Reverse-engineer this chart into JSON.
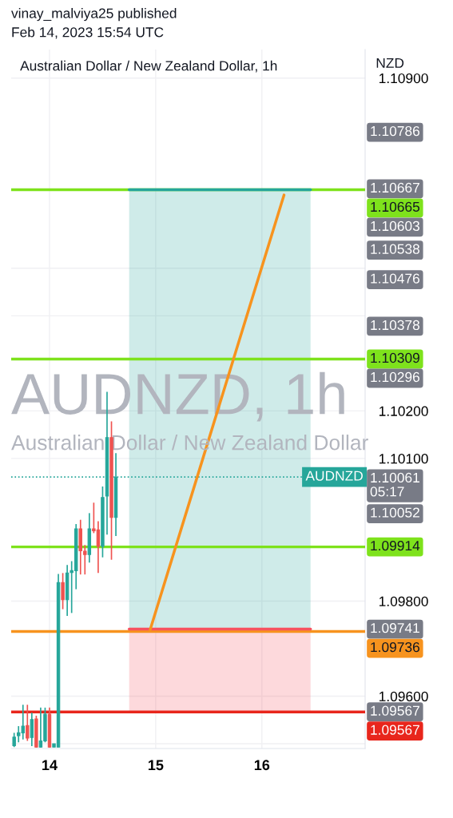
{
  "chart_data": {
    "type": "candlestick",
    "title": "Australian Dollar / New Zealand Dollar, 1h",
    "subtitle": "vinay_malviya25 published\nFeb 14, 2023 15:54 UTC",
    "ylabel": "NZD",
    "x": [
      "2023-02-13T16:00",
      "2023-02-13T17:00",
      "2023-02-13T18:00",
      "2023-02-13T19:00",
      "2023-02-13T20:00",
      "2023-02-13T21:00",
      "2023-02-13T22:00",
      "2023-02-13T23:00",
      "2023-02-14T00:00",
      "2023-02-14T01:00",
      "2023-02-14T02:00",
      "2023-02-14T03:00",
      "2023-02-14T04:00",
      "2023-02-14T05:00",
      "2023-02-14T06:00",
      "2023-02-14T07:00",
      "2023-02-14T08:00",
      "2023-02-14T09:00",
      "2023-02-14T10:00",
      "2023-02-14T11:00",
      "2023-02-14T12:00",
      "2023-02-14T13:00",
      "2023-02-14T14:00",
      "2023-02-14T15:00"
    ],
    "ohlc": [
      [
        1.09496,
        1.09523,
        1.09493,
        1.09514
      ],
      [
        1.09517,
        1.09537,
        1.09503,
        1.09523
      ],
      [
        1.09523,
        1.09582,
        1.09509,
        1.09537
      ],
      [
        1.09538,
        1.09582,
        1.09506,
        1.09512
      ],
      [
        1.09513,
        1.09565,
        1.09495,
        1.09551
      ],
      [
        1.09552,
        1.09559,
        1.09492,
        1.09493
      ],
      [
        1.09493,
        1.09576,
        1.09492,
        1.09506
      ],
      [
        1.09506,
        1.09576,
        1.09503,
        1.09562
      ],
      [
        1.09562,
        1.09576,
        1.09492,
        1.09493
      ],
      [
        1.09493,
        1.095,
        1.09493,
        1.095
      ],
      [
        1.09493,
        1.09857,
        1.09493,
        1.09839
      ],
      [
        1.09839,
        1.09859,
        1.09783,
        1.09803
      ],
      [
        1.09803,
        1.09876,
        1.09769,
        1.09859
      ],
      [
        1.0986,
        1.09884,
        1.09775,
        1.09864
      ],
      [
        1.09864,
        1.09962,
        1.09825,
        1.09952
      ],
      [
        1.09952,
        1.09971,
        1.09856,
        1.09906
      ],
      [
        1.09905,
        1.09918,
        1.09856,
        1.09898
      ],
      [
        1.09898,
        1.09985,
        1.09881,
        1.09952
      ],
      [
        1.09952,
        1.10007,
        1.09943,
        1.09948
      ],
      [
        1.0995,
        1.09968,
        1.09859,
        1.09915
      ],
      [
        1.09915,
        1.10041,
        1.09892,
        1.10018
      ],
      [
        1.10021,
        1.1024,
        1.0994,
        1.10144
      ],
      [
        1.10144,
        1.10178,
        1.09887,
        1.09976
      ],
      [
        1.09976,
        1.10111,
        1.09937,
        1.1006
      ]
    ],
    "colors": [
      "#26a69a",
      "#26a69a",
      "#26a69a",
      "#ef5350",
      "#26a69a",
      "#ef5350",
      "#26a69a",
      "#26a69a",
      "#ef5350",
      "#26a69a",
      "#26a69a",
      "#ef5350",
      "#26a69a",
      "#26a69a",
      "#26a69a",
      "#ef5350",
      "#ef5350",
      "#26a69a",
      "#ef5350",
      "#ef5350",
      "#26a69a",
      "#26a69a",
      "#ef5350",
      "#26a69a"
    ],
    "series": [
      {
        "type": "line",
        "color": "#26a69a",
        "x": [
          "2023-02-14T18:00",
          "2023-02-16T11:00"
        ],
        "values": [
          1.10665,
          1.10665
        ],
        "lower": [
          1.09741,
          1.09741
        ],
        "upper": [
          1.10665,
          1.10665
        ]
      },
      {
        "type": "line",
        "color": "#f7525f",
        "x": [
          "2023-02-14T18:00",
          "2023-02-16T11:00"
        ],
        "values": [
          1.09741,
          1.09741
        ],
        "lower": [
          1.09567,
          1.09567
        ],
        "upper": [
          1.09741,
          1.09741
        ]
      },
      {
        "type": "line",
        "color": "#f7931e",
        "x": [
          "2023-02-14T22:45",
          "2023-02-16T05:00"
        ],
        "values": [
          1.0974,
          1.10654
        ]
      }
    ],
    "xlim": [
      "2023-02-13T15:20",
      "2023-02-16T23:20"
    ],
    "xticks": [
      {
        "value": "2023-02-14",
        "label": "14"
      },
      {
        "value": "2023-02-15",
        "label": "15"
      },
      {
        "value": "2023-02-16",
        "label": "16"
      }
    ],
    "ylim": [
      1.0949,
      1.1096
    ],
    "yticks": [
      {
        "value": 1.095,
        "label": null
      },
      {
        "value": 1.096,
        "label": "1.09600"
      },
      {
        "value": 1.098,
        "label": "1.09800"
      },
      {
        "value": 1.101,
        "label": "1.10100"
      },
      {
        "value": 1.102,
        "label": "1.10200"
      },
      {
        "value": 1.104,
        "label": null
      },
      {
        "value": 1.105,
        "label": null
      },
      {
        "value": 1.109,
        "label": "1.10900"
      }
    ],
    "grid": true,
    "ref_lines": [
      {
        "axis": "y",
        "value": 1.10665,
        "label": "1.10665",
        "color": "#7ee21c"
      },
      {
        "axis": "y",
        "value": 1.10309,
        "label": "1.10309",
        "color": "#7ee21c"
      },
      {
        "axis": "y",
        "value": 1.09914,
        "label": "1.09914",
        "color": "#7ee21c"
      },
      {
        "axis": "y",
        "value": 1.09736,
        "label": "1.09736",
        "color": "#f7931e"
      },
      {
        "axis": "y",
        "value": 1.09567,
        "label": "1.09567",
        "color": "#e8261c"
      },
      {
        "axis": "y",
        "value": 1.10061,
        "label": "AUDNZD",
        "color": "#26a69a",
        "line_style": "dotted"
      }
    ],
    "annotations": [
      "AUDNZD, 1h",
      "Australian Dollar / New Zealand Dollar",
      "1.10786",
      "1.10667",
      "1.10603",
      "1.10538",
      "1.10476",
      "1.10378",
      "1.10296",
      "1.10061\n05:17",
      "1.10052",
      "1.09741",
      "1.09567"
    ]
  }
}
